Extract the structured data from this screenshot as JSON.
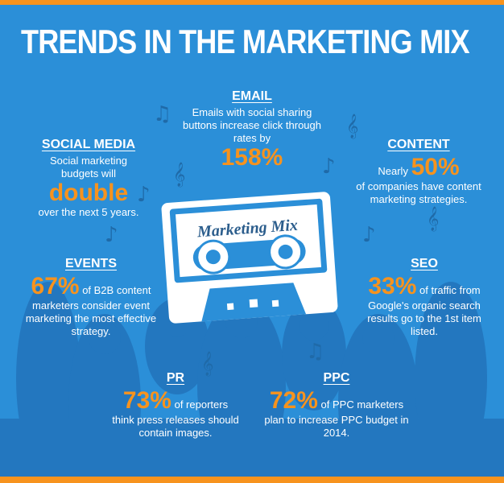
{
  "title": "TRENDS IN THE MARKETING MIX",
  "cassette_label": "Marketing Mix",
  "sections": {
    "email": {
      "heading": "EMAIL",
      "text": "Emails with social sharing buttons increase click through rates by",
      "stat": "158%"
    },
    "social_media": {
      "heading": "SOCIAL MEDIA",
      "text": "Social marketing budgets will",
      "stat": "double",
      "text_after": "over the next 5 years."
    },
    "content": {
      "heading": "CONTENT",
      "text": "Nearly",
      "stat": "50%",
      "text_after": "of companies have content marketing strategies."
    },
    "events": {
      "heading": "EVENTS",
      "stat": "67%",
      "text_after": "of B2B content marketers consider event marketing the most effective strategy."
    },
    "seo": {
      "heading": "SEO",
      "stat": "33%",
      "text_after": "of traffic from Google's organic search results go to the 1st item listed."
    },
    "pr": {
      "heading": "PR",
      "stat": "73%",
      "text_after": "of reporters think press releases should contain images."
    },
    "ppc": {
      "heading": "PPC",
      "stat": "72%",
      "text_after": "of PPC marketers plan to increase PPC budget in 2014."
    }
  }
}
